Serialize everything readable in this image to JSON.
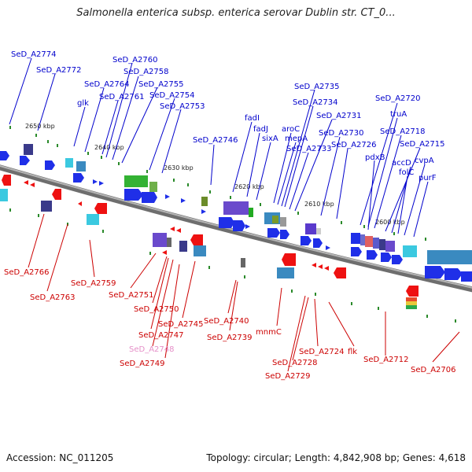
{
  "title": "Salmonella enterica subsp. enterica serovar Dublin str. CT_0...",
  "footer": {
    "accession": "Accession: NC_011205",
    "summary": "Topology: circular; Length: 4,842,908 bp; Genes: 4,618"
  },
  "colors": {
    "forward_label": "#0000cc",
    "reverse_label": "#cc0000",
    "pseudo_label": "#e58fc8",
    "backbone": "#8a8a8a",
    "forward_gene": "#1f2fe8",
    "reverse_gene": "#ee1111",
    "tick": "#2a8a2a"
  },
  "ticks": [
    {
      "label": "2650 kbp"
    },
    {
      "label": "2640 kbp"
    },
    {
      "label": "2630 kbp"
    },
    {
      "label": "2620 kbp"
    },
    {
      "label": "2610 kbp"
    },
    {
      "label": "2600 kbp"
    }
  ],
  "forward_labels": [
    "SeD_A2774",
    "SeD_A2772",
    "glk",
    "SeD_A2764",
    "SeD_A2761",
    "SeD_A2760",
    "SeD_A2758",
    "SeD_A2755",
    "SeD_A2754",
    "SeD_A2753",
    "SeD_A2746",
    "fadI",
    "fadJ",
    "sixA",
    "aroC",
    "mepA",
    "SeD_A2735",
    "SeD_A2734",
    "SeD_A2733",
    "SeD_A2731",
    "SeD_A2730",
    "SeD_A2726",
    "SeD_A2720",
    "truA",
    "SeD_A2718",
    "pdxB",
    "SeD_A2715",
    "accD",
    "folC",
    "cvpA",
    "purF"
  ],
  "reverse_labels": [
    "SeD_A2766",
    "SeD_A2763",
    "SeD_A2759",
    "SeD_A2751",
    "SeD_A2750",
    "SeD_A2747",
    "SeD_A2745",
    "SeD_A2748",
    "SeD_A2749",
    "SeD_A2740",
    "SeD_A2739",
    "mnmC",
    "SeD_A2724",
    "SeD_A2728",
    "SeD_A2729",
    "flk",
    "SeD_A2712",
    "SeD_A2706"
  ]
}
